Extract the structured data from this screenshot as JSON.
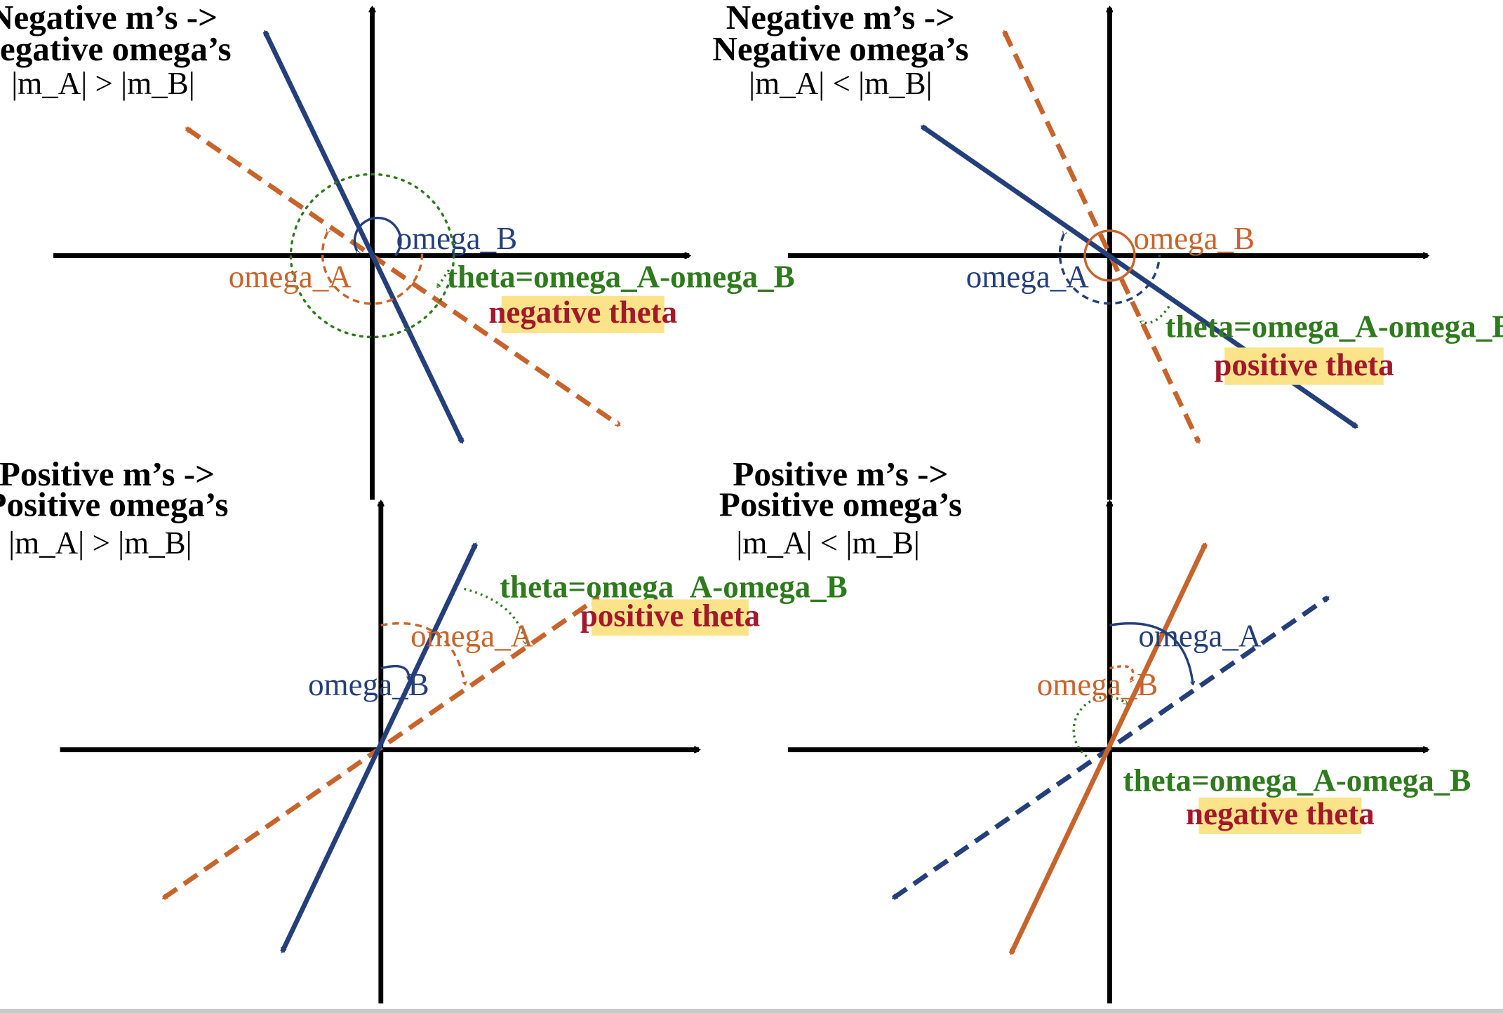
{
  "colors": {
    "axis": "#000000",
    "blue": "#243f7a",
    "orange": "#c7642b",
    "green": "#2e7a1d",
    "red": "#a3182a",
    "highlight": "#fbe38a"
  },
  "panels": [
    {
      "id": "top-left",
      "title_line1": "Negative m’s ->",
      "title_line2": "Negative omega’s",
      "condition": "|m_A| > |m_B|",
      "label_B": "omega_B",
      "label_A": "omega_A",
      "theta_label": "theta=omega_A-omega_B",
      "sign_label": "negative theta"
    },
    {
      "id": "top-right",
      "title_line1": "Negative m’s ->",
      "title_line2": "Negative omega’s",
      "condition": "|m_A| < |m_B|",
      "label_B": "omega_B",
      "label_A": "omega_A",
      "theta_label": "theta=omega_A-omega_B",
      "sign_label": "positive theta"
    },
    {
      "id": "bottom-left",
      "title_line1": "Positive m’s ->",
      "title_line2": "Positive omega’s",
      "condition": "|m_A| > |m_B|",
      "label_A": "omega_A",
      "label_B": "omega_B",
      "theta_label": "theta=omega_A-omega_B",
      "sign_label": "positive theta"
    },
    {
      "id": "bottom-right",
      "title_line1": "Positive m’s ->",
      "title_line2": "Positive omega’s",
      "condition": "|m_A| < |m_B|",
      "label_A": "omega_A",
      "label_B": "omega_B",
      "theta_label": "theta=omega_A-omega_B",
      "sign_label": "negative theta"
    }
  ]
}
